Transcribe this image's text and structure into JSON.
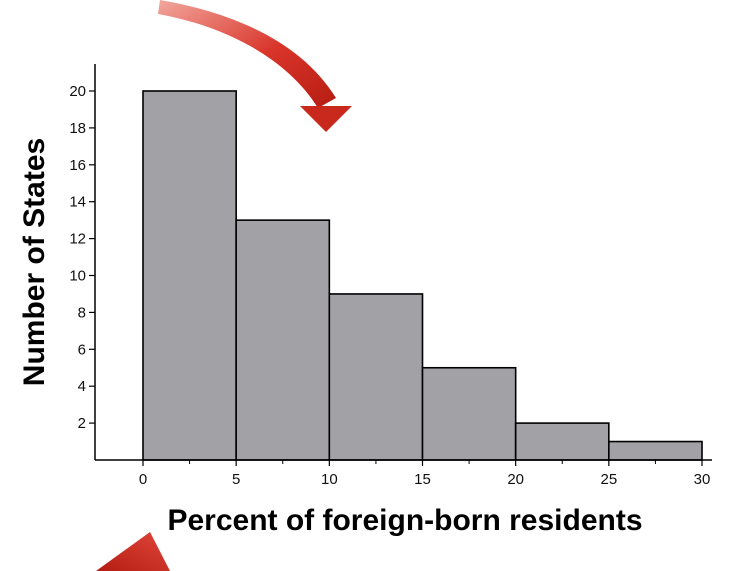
{
  "chart_data": {
    "type": "bar",
    "variant": "histogram",
    "bins": [
      {
        "start": 0,
        "end": 5,
        "count": 20
      },
      {
        "start": 5,
        "end": 10,
        "count": 13
      },
      {
        "start": 10,
        "end": 15,
        "count": 9
      },
      {
        "start": 15,
        "end": 20,
        "count": 5
      },
      {
        "start": 20,
        "end": 25,
        "count": 2
      },
      {
        "start": 25,
        "end": 30,
        "count": 1
      }
    ],
    "title": "",
    "xlabel": "Percent of foreign-born residents",
    "ylabel": "Number of States",
    "xlim": [
      0,
      30
    ],
    "ylim": [
      0,
      20
    ],
    "x_ticks": [
      "0",
      "5",
      "10",
      "15",
      "20",
      "25",
      "30"
    ],
    "y_ticks": [
      "2",
      "4",
      "6",
      "8",
      "10",
      "12",
      "14",
      "16",
      "18",
      "20"
    ],
    "grid": false,
    "legend": "none",
    "bar_color": "#a2a1a6",
    "bar_edge_color": "#000000",
    "annotations": [
      {
        "kind": "arrow",
        "description": "red curved arrow pointing down toward the 5-10 bin",
        "color": "#cc2a1e"
      },
      {
        "kind": "arrow",
        "description": "red arrow pointing up, partially visible at bottom-left",
        "color": "#cc2a1e"
      }
    ]
  }
}
